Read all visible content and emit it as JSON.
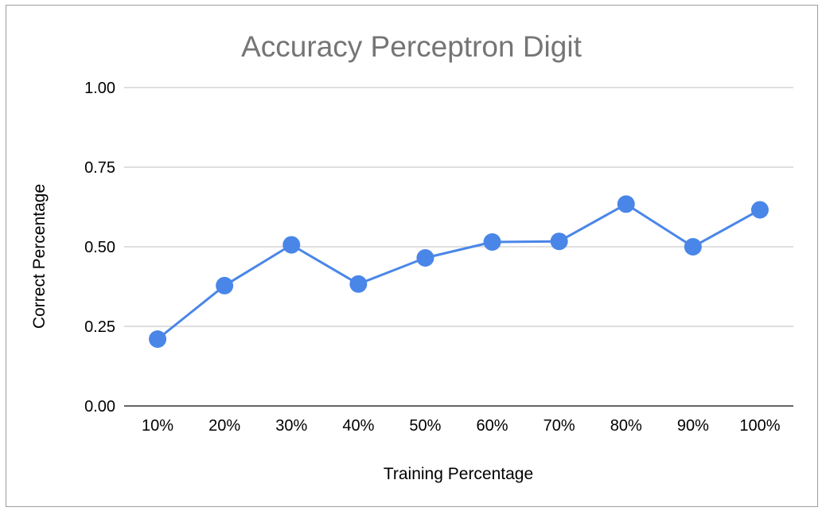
{
  "chart_data": {
    "type": "line",
    "title": "Accuracy Perceptron Digit",
    "xlabel": "Training Percentage",
    "ylabel": "Correct Percentage",
    "categories": [
      "10%",
      "20%",
      "30%",
      "40%",
      "50%",
      "60%",
      "70%",
      "80%",
      "90%",
      "100%"
    ],
    "series": [
      {
        "values": [
          0.21,
          0.378,
          0.506,
          0.383,
          0.465,
          0.515,
          0.517,
          0.634,
          0.5,
          0.616
        ]
      }
    ],
    "yticks": [
      "0.00",
      "0.25",
      "0.50",
      "0.75",
      "1.00"
    ],
    "ylim": [
      0,
      1
    ],
    "grid": true,
    "legend": "none",
    "colors": {
      "series": "#4a86e8",
      "grid": "#cccccc",
      "axis": "#333333",
      "title": "#757575",
      "frame": "#9e9e9e"
    }
  }
}
